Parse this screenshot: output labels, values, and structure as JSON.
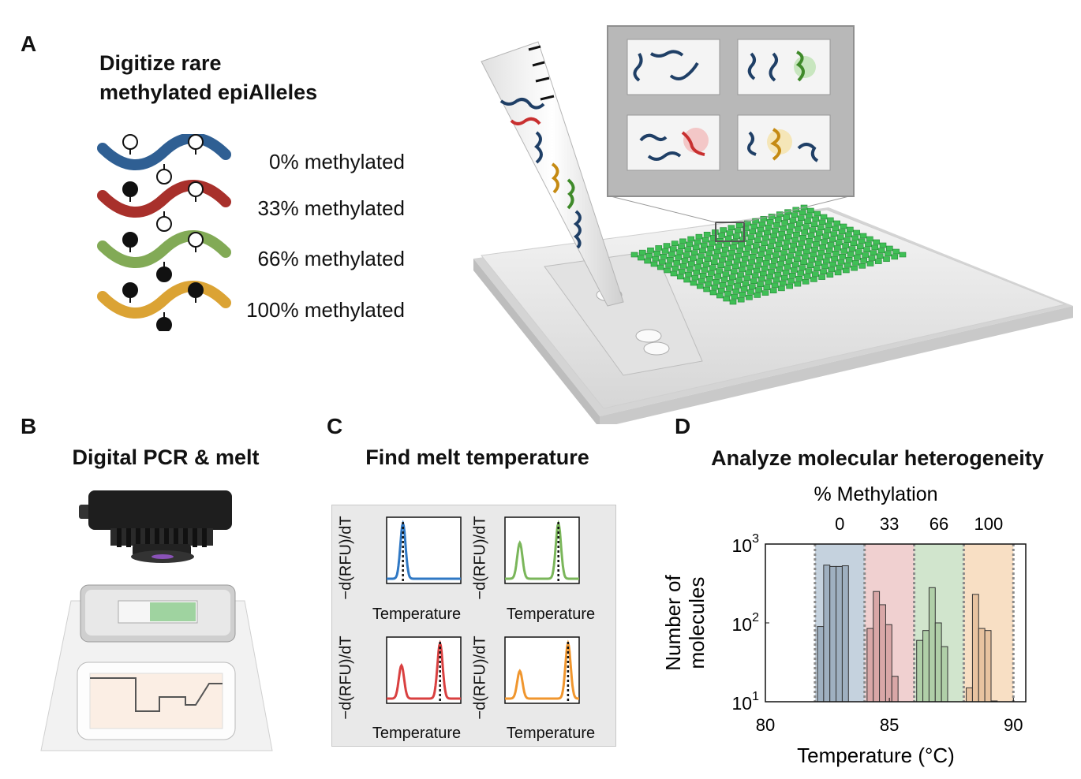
{
  "panel_a": {
    "letter": "A",
    "title_line1": "Digitize rare",
    "title_line2": "methylated epiAlleles",
    "alleles": [
      {
        "label": "0% methylated",
        "color": "#2f5f93",
        "sites": [
          "open",
          "open",
          "open"
        ]
      },
      {
        "label": "33% methylated",
        "color": "#a8302b",
        "sites": [
          "filled",
          "open",
          "open"
        ]
      },
      {
        "label": "66% methylated",
        "color": "#82aa56",
        "sites": [
          "filled",
          "filled",
          "open"
        ]
      },
      {
        "label": "100% methylated",
        "color": "#dba334",
        "sites": [
          "filled",
          "filled",
          "filled"
        ]
      }
    ]
  },
  "panel_b": {
    "letter": "B",
    "title": "Digital PCR & melt"
  },
  "panel_c": {
    "letter": "C",
    "title": "Find melt temperature",
    "ylabel": "−d(RFU)/dT",
    "xlabel": "Temperature",
    "curves": [
      {
        "color": "#2f78c4"
      },
      {
        "color": "#7ab65a"
      },
      {
        "color": "#d94040"
      },
      {
        "color": "#f0962e"
      }
    ]
  },
  "panel_d": {
    "letter": "D",
    "title": "Analyze molecular heterogeneity",
    "top_label": "% Methylation",
    "chart_data": {
      "type": "bar",
      "title": "Analyze molecular heterogeneity",
      "xlabel": "Temperature (°C)",
      "ylabel": "Number of molecules",
      "ylog": true,
      "xlim": [
        80,
        90.5
      ],
      "ylim": [
        10,
        1000
      ],
      "xticks": [
        "80",
        "85",
        "90"
      ],
      "yticks": [
        "10^1",
        "10^2",
        "10^3"
      ],
      "top_axis": {
        "label": "% Methylation",
        "ticks": [
          "0",
          "33",
          "66",
          "100"
        ]
      },
      "bin_width": 0.25,
      "bands": [
        {
          "name": "0",
          "range": [
            82.0,
            84.0
          ],
          "color": "#b7c7d6"
        },
        {
          "name": "33",
          "range": [
            84.0,
            86.0
          ],
          "color": "#ecc4c4"
        },
        {
          "name": "66",
          "range": [
            86.0,
            88.0
          ],
          "color": "#c6dec0"
        },
        {
          "name": "100",
          "range": [
            88.0,
            90.0
          ],
          "color": "#f6d7b5"
        }
      ],
      "series": [
        {
          "name": "0",
          "color": "#9fb0c0",
          "x": [
            82.1,
            82.35,
            82.6,
            82.85,
            83.1
          ],
          "values": [
            90,
            540,
            520,
            520,
            530
          ]
        },
        {
          "name": "33",
          "color": "#d9a7a7",
          "x": [
            84.1,
            84.35,
            84.6,
            84.85,
            85.1
          ],
          "values": [
            85,
            250,
            170,
            95,
            21
          ]
        },
        {
          "name": "66",
          "color": "#b0cfa8",
          "x": [
            86.1,
            86.35,
            86.6,
            86.85,
            87.1
          ],
          "values": [
            60,
            80,
            280,
            100,
            50
          ]
        },
        {
          "name": "100",
          "color": "#e8c3a0",
          "x": [
            88.1,
            88.35,
            88.6,
            88.85,
            89.1
          ],
          "values": [
            15,
            230,
            85,
            80,
            0
          ]
        }
      ]
    }
  }
}
